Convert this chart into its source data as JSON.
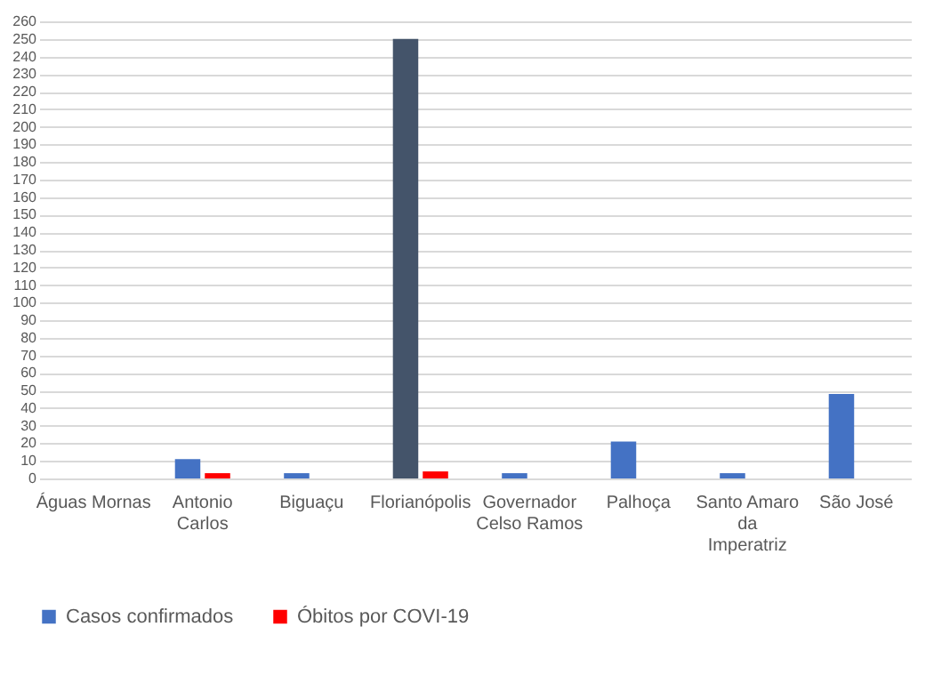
{
  "chart_data": {
    "type": "bar",
    "categories": [
      "Águas Mornas",
      "Antonio Carlos",
      "Biguaçu",
      "Florianópolis",
      "Governador Celso Ramos",
      "Palhoça",
      "Santo Amaro da Imperatriz",
      "São José"
    ],
    "series": [
      {
        "name": "Casos confirmados",
        "color": "#4472c4",
        "colors": [
          "#4472c4",
          "#4472c4",
          "#4472c4",
          "#44546a",
          "#4472c4",
          "#4472c4",
          "#4472c4",
          "#4472c4"
        ],
        "values": [
          null,
          11,
          3,
          250,
          3,
          21,
          3,
          48
        ]
      },
      {
        "name": "Óbitos por COVI-19",
        "color": "#ff0000",
        "values": [
          null,
          3,
          null,
          4,
          null,
          null,
          null,
          null
        ]
      }
    ],
    "ylim": [
      0,
      260
    ],
    "yticks": [
      0,
      10,
      20,
      30,
      40,
      50,
      60,
      70,
      80,
      90,
      100,
      110,
      120,
      130,
      140,
      150,
      160,
      170,
      180,
      190,
      200,
      210,
      220,
      230,
      240,
      250,
      260
    ],
    "grid": "y",
    "legend": "bottom"
  }
}
